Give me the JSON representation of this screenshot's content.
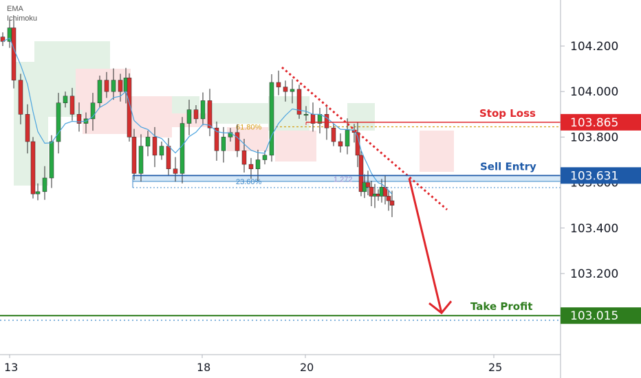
{
  "indicators": [
    "EMA",
    "Ichimoku"
  ],
  "colors": {
    "up": "#27a844",
    "down": "#d32f2f",
    "ema": "#4aa3df",
    "stop": "#e0262b",
    "entry": "#1e5aa8",
    "profit": "#2e7d1e",
    "fib618": "#d4a017",
    "fib236": "#3a86c8",
    "cloud_green": "#e3f1e5",
    "cloud_red": "#fbe3e3"
  },
  "levels": {
    "stop_loss": {
      "label": "Stop Loss",
      "price": 103.865,
      "price_text": "103.865"
    },
    "sell_entry": {
      "label": "Sell Entry",
      "price": 103.631,
      "price_text": "103.631"
    },
    "take_profit": {
      "label": "Take Profit",
      "price": 103.015,
      "price_text": "103.015"
    }
  },
  "fib_labels": {
    "fib_618": "61.80%",
    "fib_236": "23.60%",
    "ext": "1.272"
  },
  "chart_data": {
    "type": "candlestick",
    "y_ticks": [
      "104.200",
      "104.000",
      "103.800",
      "103.600",
      "103.400",
      "103.200"
    ],
    "x_ticks": [
      "13",
      "18",
      "20",
      "25"
    ],
    "ylim": [
      102.93,
      104.36
    ],
    "fib_levels": {
      "61.80%": 103.845,
      "23.60%": 103.605
    },
    "series": [
      {
        "name": "EMA"
      },
      {
        "name": "Ichimoku"
      }
    ]
  }
}
